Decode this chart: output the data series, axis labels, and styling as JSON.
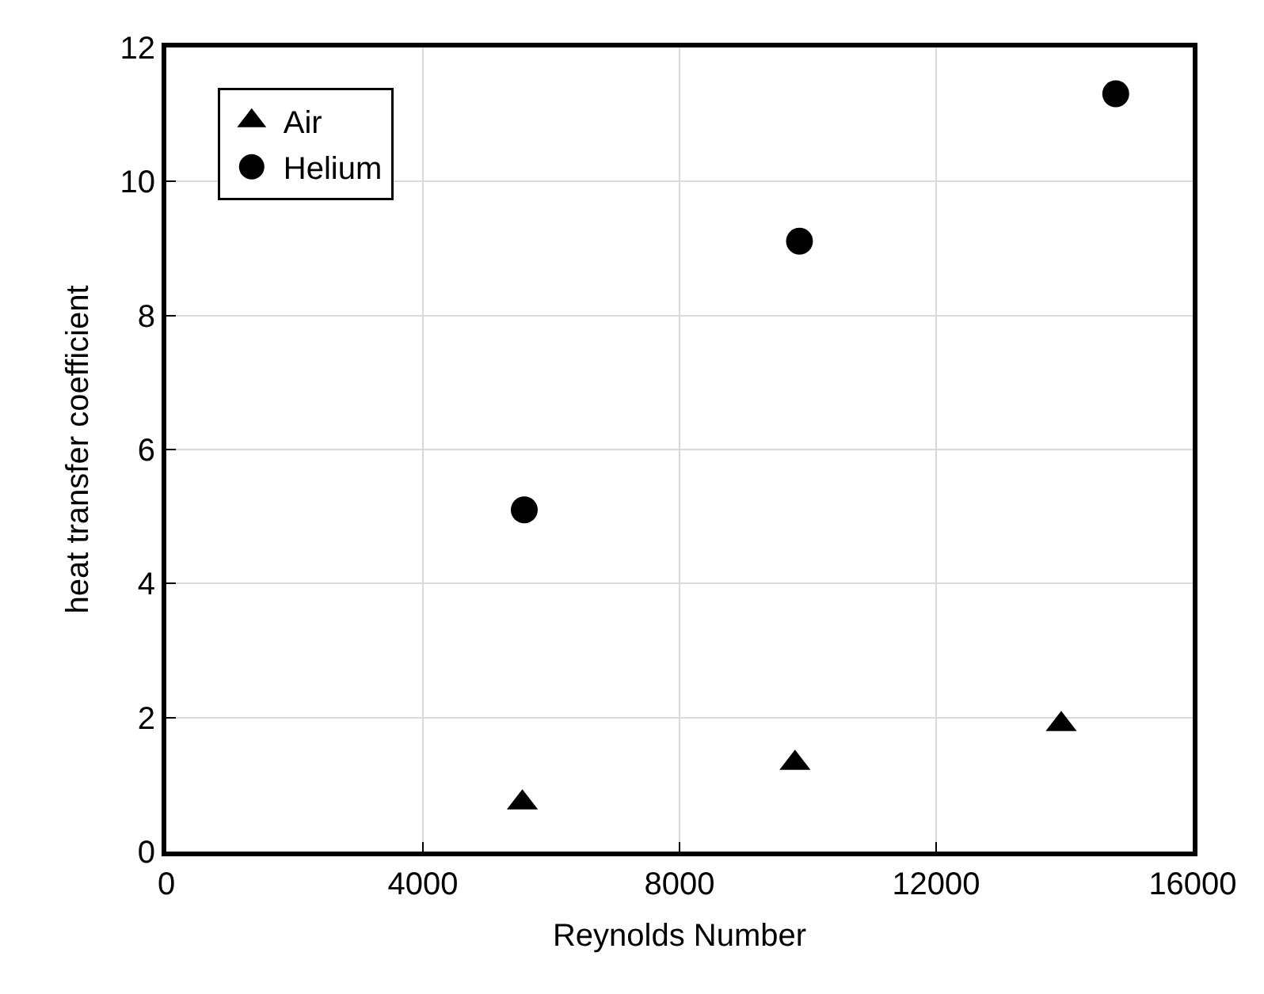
{
  "chart_data": {
    "type": "scatter",
    "xlabel": "Reynolds Number",
    "ylabel": "heat transfer coefficient",
    "xlim": [
      0,
      16000
    ],
    "xticks": [
      0,
      4000,
      8000,
      12000,
      16000
    ],
    "ylim": [
      0,
      12
    ],
    "yticks": [
      0,
      2,
      4,
      6,
      8,
      10,
      12
    ],
    "grid": true,
    "legend": "top left",
    "series": [
      {
        "name": "Air",
        "color": "#000000",
        "marker": "triangle",
        "x": [
          5550,
          9800,
          13950
        ],
        "values": [
          0.73,
          1.32,
          1.9
        ]
      },
      {
        "name": "Helium",
        "color": "#000000",
        "marker": "circle",
        "x": [
          5580,
          9870,
          14800
        ],
        "values": [
          5.1,
          9.11,
          11.31
        ]
      }
    ]
  }
}
